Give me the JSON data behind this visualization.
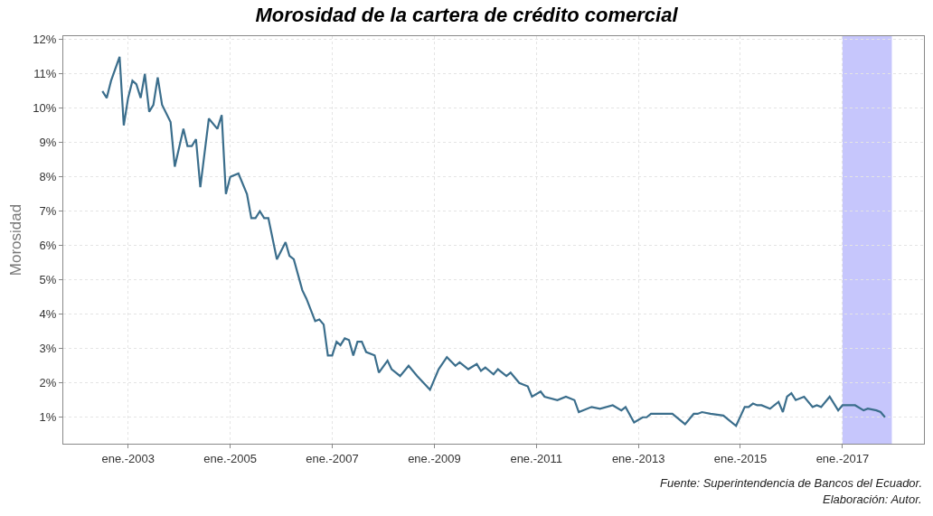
{
  "chart_data": {
    "type": "line",
    "title": "Morosidad de la cartera de crédito comercial",
    "ylabel": "Morosidad",
    "x": [
      "2002-07",
      "2002-08",
      "2002-09",
      "2002-11",
      "2002-12",
      "2003-01",
      "2003-02",
      "2003-03",
      "2003-04",
      "2003-05",
      "2003-06",
      "2003-07",
      "2003-08",
      "2003-09",
      "2003-11",
      "2003-12",
      "2004-02",
      "2004-03",
      "2004-04",
      "2004-05",
      "2004-06",
      "2004-08",
      "2004-10",
      "2004-11",
      "2004-12",
      "2005-01",
      "2005-03",
      "2005-05",
      "2005-06",
      "2005-07",
      "2005-08",
      "2005-09",
      "2005-10",
      "2005-12",
      "2006-02",
      "2006-03",
      "2006-04",
      "2006-06",
      "2006-07",
      "2006-09",
      "2006-10",
      "2006-11",
      "2006-12",
      "2007-01",
      "2007-02",
      "2007-03",
      "2007-04",
      "2007-05",
      "2007-06",
      "2007-07",
      "2007-08",
      "2007-09",
      "2007-11",
      "2007-12",
      "2008-02",
      "2008-03",
      "2008-04",
      "2008-05",
      "2008-07",
      "2008-09",
      "2008-12",
      "2009-02",
      "2009-04",
      "2009-06",
      "2009-07",
      "2009-09",
      "2009-11",
      "2009-12",
      "2010-01",
      "2010-03",
      "2010-04",
      "2010-06",
      "2010-07",
      "2010-09",
      "2010-11",
      "2010-12",
      "2011-02",
      "2011-03",
      "2011-06",
      "2011-08",
      "2011-10",
      "2011-11",
      "2012-02",
      "2012-04",
      "2012-07",
      "2012-09",
      "2012-10",
      "2012-12",
      "2013-02",
      "2013-03",
      "2013-04",
      "2013-07",
      "2013-09",
      "2013-12",
      "2014-02",
      "2014-03",
      "2014-04",
      "2014-06",
      "2014-09",
      "2014-12",
      "2015-02",
      "2015-03",
      "2015-04",
      "2015-05",
      "2015-06",
      "2015-08",
      "2015-10",
      "2015-11",
      "2015-12",
      "2016-01",
      "2016-02",
      "2016-04",
      "2016-06",
      "2016-07",
      "2016-08",
      "2016-10",
      "2016-12",
      "2017-01",
      "2017-04",
      "2017-06",
      "2017-07",
      "2017-09",
      "2017-10",
      "2017-11"
    ],
    "series": [
      {
        "color": "#3b6e8c",
        "values": [
          10.5,
          10.3,
          10.8,
          11.5,
          9.5,
          10.3,
          10.8,
          10.7,
          10.3,
          11.0,
          9.9,
          10.1,
          10.9,
          10.1,
          9.6,
          8.3,
          9.4,
          8.9,
          8.9,
          9.1,
          7.7,
          9.7,
          9.4,
          9.8,
          7.5,
          8.0,
          8.1,
          7.5,
          6.8,
          6.8,
          7.0,
          6.8,
          6.8,
          5.6,
          6.1,
          5.7,
          5.6,
          4.7,
          4.45,
          3.8,
          3.85,
          3.7,
          2.8,
          2.8,
          3.2,
          3.1,
          3.3,
          3.25,
          2.8,
          3.2,
          3.2,
          2.9,
          2.8,
          2.3,
          2.65,
          2.4,
          2.3,
          2.2,
          2.5,
          2.2,
          1.8,
          2.4,
          2.75,
          2.5,
          2.6,
          2.4,
          2.55,
          2.35,
          2.45,
          2.25,
          2.4,
          2.2,
          2.3,
          2.0,
          1.9,
          1.6,
          1.75,
          1.6,
          1.5,
          1.6,
          1.5,
          1.15,
          1.3,
          1.25,
          1.35,
          1.2,
          1.3,
          0.85,
          1.0,
          1.0,
          1.1,
          1.1,
          1.1,
          0.8,
          1.1,
          1.1,
          1.15,
          1.1,
          1.05,
          0.75,
          1.3,
          1.3,
          1.4,
          1.35,
          1.35,
          1.25,
          1.45,
          1.15,
          1.6,
          1.7,
          1.5,
          1.6,
          1.3,
          1.35,
          1.3,
          1.6,
          1.2,
          1.35,
          1.35,
          1.2,
          1.25,
          1.2,
          1.15,
          1.0
        ]
      }
    ],
    "xlim": [
      "2001-09-24",
      "2018-08-07"
    ],
    "xticks": [
      {
        "value": "2003-01",
        "label": "ene.-2003"
      },
      {
        "value": "2005-01",
        "label": "ene.-2005"
      },
      {
        "value": "2007-01",
        "label": "ene.-2007"
      },
      {
        "value": "2009-01",
        "label": "ene.-2009"
      },
      {
        "value": "2011-01",
        "label": "ene.-2011"
      },
      {
        "value": "2013-01",
        "label": "ene.-2013"
      },
      {
        "value": "2015-01",
        "label": "ene.-2015"
      },
      {
        "value": "2017-01",
        "label": "ene.-2017"
      }
    ],
    "ylim": [
      0.23,
      12.1
    ],
    "yticks": [
      {
        "value": 1,
        "label": "1%"
      },
      {
        "value": 2,
        "label": "2%"
      },
      {
        "value": 3,
        "label": "3%"
      },
      {
        "value": 4,
        "label": "4%"
      },
      {
        "value": 5,
        "label": "5%"
      },
      {
        "value": 6,
        "label": "6%"
      },
      {
        "value": 7,
        "label": "7%"
      },
      {
        "value": 8,
        "label": "8%"
      },
      {
        "value": 9,
        "label": "9%"
      },
      {
        "value": 10,
        "label": "10%"
      },
      {
        "value": 11,
        "label": "11%"
      },
      {
        "value": 12,
        "label": "12%"
      }
    ],
    "bands": [
      {
        "axis": "x",
        "from": "2017-01",
        "to": "2017-12-20",
        "color": "#c6c6fc"
      }
    ],
    "grid": true,
    "marker": "none",
    "line_style": "solid",
    "annotations": [
      "Fuente: Superintendencia de Bancos del Ecuador.",
      "Elaboración: Autor."
    ]
  }
}
